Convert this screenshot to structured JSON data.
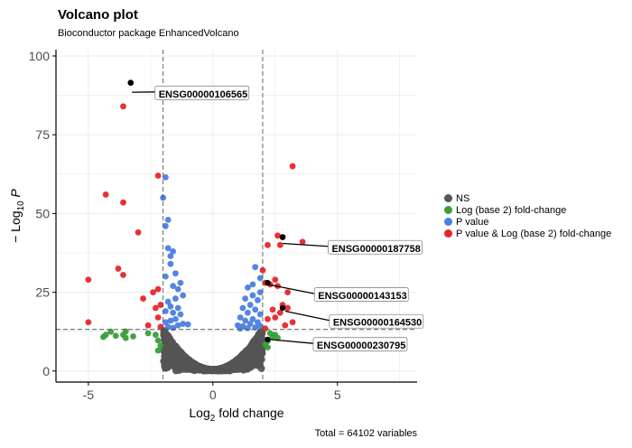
{
  "chart_data": {
    "type": "scatter",
    "title": "Volcano plot",
    "subtitle": "Bioconductor package EnhancedVolcano",
    "caption": "Total = 64102 variables",
    "xlabel": {
      "base": "Log",
      "sub": "2",
      "rest": " fold change"
    },
    "ylabel": {
      "prefix": "− Log",
      "sub": "10",
      "rest": " P"
    },
    "xlim": [
      -6.3,
      8.2
    ],
    "ylim": [
      -3.5,
      102
    ],
    "xticks": [
      -5,
      0,
      5
    ],
    "yticks": [
      0,
      25,
      50,
      75,
      100
    ],
    "grid": true,
    "thresholds": {
      "fc": 2,
      "p_line": 13.2
    },
    "legend_position": "right",
    "colors": {
      "NS": "#555555",
      "FC": "#3a9e3a",
      "P": "#4a7fe0",
      "FCP": "#e8262a",
      "grid": "#ebebeb",
      "axis": "#000000",
      "threshold": "#555555"
    },
    "legend": [
      {
        "key": "NS",
        "label": "NS"
      },
      {
        "key": "FC",
        "label": "Log (base 2) fold-change"
      },
      {
        "key": "P",
        "label": "P value"
      },
      {
        "key": "FCP",
        "label": "P value & Log (base 2) fold-change"
      }
    ],
    "series": [
      {
        "key": "FCP",
        "points": [
          [
            -3.3,
            91.5
          ],
          [
            -3.6,
            84
          ],
          [
            -4.3,
            56
          ],
          [
            -3.6,
            53.5
          ],
          [
            -2.2,
            62
          ],
          [
            -3.0,
            44
          ],
          [
            -5.0,
            29
          ],
          [
            -3.8,
            32.5
          ],
          [
            -3.6,
            30.5
          ],
          [
            -2.4,
            25
          ],
          [
            -2.2,
            26
          ],
          [
            -2.8,
            23
          ],
          [
            -2.1,
            21
          ],
          [
            -2.3,
            20
          ],
          [
            -2.2,
            17
          ],
          [
            -5.0,
            15.5
          ],
          [
            -2.6,
            14.5
          ],
          [
            -2.1,
            14
          ],
          [
            2.6,
            43
          ],
          [
            2.8,
            42.5
          ],
          [
            2.7,
            40
          ],
          [
            3.6,
            41
          ],
          [
            3.2,
            65
          ],
          [
            2.2,
            40
          ],
          [
            2.0,
            32
          ],
          [
            2.1,
            28
          ],
          [
            2.3,
            27.5
          ],
          [
            2.5,
            29
          ],
          [
            2.6,
            27
          ],
          [
            3.0,
            25
          ],
          [
            2.8,
            21
          ],
          [
            3.0,
            20
          ],
          [
            2.7,
            18.5
          ],
          [
            2.4,
            19.5
          ],
          [
            2.2,
            16.5
          ],
          [
            2.5,
            17
          ],
          [
            2.9,
            14.5
          ],
          [
            3.2,
            15.5
          ],
          [
            2.1,
            13.5
          ]
        ]
      },
      {
        "key": "P",
        "points": [
          [
            -1.9,
            61.5
          ],
          [
            -2.0,
            55
          ],
          [
            -1.8,
            48
          ],
          [
            -1.9,
            46
          ],
          [
            -1.8,
            39
          ],
          [
            -1.6,
            38
          ],
          [
            -1.7,
            36.5
          ],
          [
            -1.7,
            34
          ],
          [
            -1.5,
            31
          ],
          [
            -1.9,
            30
          ],
          [
            -1.3,
            28
          ],
          [
            -1.4,
            26
          ],
          [
            -1.6,
            27
          ],
          [
            -1.2,
            24
          ],
          [
            -1.5,
            23
          ],
          [
            -1.8,
            22
          ],
          [
            -1.7,
            20.5
          ],
          [
            -1.4,
            20
          ],
          [
            -1.6,
            18.5
          ],
          [
            -1.9,
            19
          ],
          [
            -1.3,
            18
          ],
          [
            -1.5,
            16.5
          ],
          [
            -1.7,
            16
          ],
          [
            -1.9,
            15.5
          ],
          [
            -1.2,
            15
          ],
          [
            -1.4,
            14.5
          ],
          [
            -1.8,
            14
          ],
          [
            -1.6,
            13.7
          ],
          [
            -1.0,
            14.8
          ],
          [
            1.7,
            33
          ],
          [
            1.9,
            29.5
          ],
          [
            1.6,
            27.5
          ],
          [
            1.4,
            26.5
          ],
          [
            1.9,
            25
          ],
          [
            1.6,
            24
          ],
          [
            1.3,
            23
          ],
          [
            1.8,
            22.5
          ],
          [
            1.5,
            21
          ],
          [
            1.2,
            20
          ],
          [
            1.7,
            19.5
          ],
          [
            1.4,
            18.5
          ],
          [
            1.9,
            18
          ],
          [
            1.1,
            17
          ],
          [
            1.6,
            16.5
          ],
          [
            1.3,
            16
          ],
          [
            1.8,
            15.5
          ],
          [
            1.5,
            15
          ],
          [
            1.0,
            14.5
          ],
          [
            1.2,
            14.2
          ],
          [
            1.7,
            13.8
          ],
          [
            1.9,
            14.3
          ],
          [
            1.4,
            13.6
          ],
          [
            1.1,
            13.5
          ]
        ]
      },
      {
        "key": "FC",
        "points": [
          [
            -4.3,
            11.5
          ],
          [
            -4.1,
            12.5
          ],
          [
            -4.4,
            10.8
          ],
          [
            -3.9,
            11.2
          ],
          [
            -3.6,
            11.5
          ],
          [
            -3.5,
            12.6
          ],
          [
            -3.2,
            11
          ],
          [
            -2.6,
            12
          ],
          [
            -2.3,
            11.5
          ],
          [
            -2.2,
            9.7
          ],
          [
            -2.1,
            8
          ],
          [
            -2.2,
            6.5
          ],
          [
            -3.5,
            10.5
          ],
          [
            2.2,
            9.5
          ],
          [
            2.4,
            11
          ],
          [
            2.1,
            8.5
          ],
          [
            2.3,
            12
          ],
          [
            2.5,
            11.5
          ],
          [
            2.2,
            7.5
          ],
          [
            2.6,
            10.5
          ]
        ]
      }
    ],
    "labels": [
      {
        "text": "ENSG00000106565",
        "point": [
          -3.3,
          91.5
        ],
        "anchor": [
          -3.25,
          88.5
        ],
        "at": [
          -2.25,
          88
        ]
      },
      {
        "text": "ENSG00000187758",
        "point": [
          2.8,
          42.5
        ],
        "anchor": [
          2.8,
          40.5
        ],
        "at": [
          4.7,
          39
        ]
      },
      {
        "text": "ENSG00000143153",
        "point": [
          2.2,
          28
        ],
        "anchor": [
          2.2,
          27.5
        ],
        "at": [
          4.15,
          24
        ]
      },
      {
        "text": "ENSG00000164530",
        "point": [
          2.8,
          20
        ],
        "anchor": [
          2.9,
          19
        ],
        "at": [
          4.75,
          15.5
        ]
      },
      {
        "text": "ENSG00000230795",
        "point": [
          2.2,
          10
        ],
        "anchor": [
          2.3,
          10
        ],
        "at": [
          4.1,
          8.2
        ]
      }
    ]
  }
}
